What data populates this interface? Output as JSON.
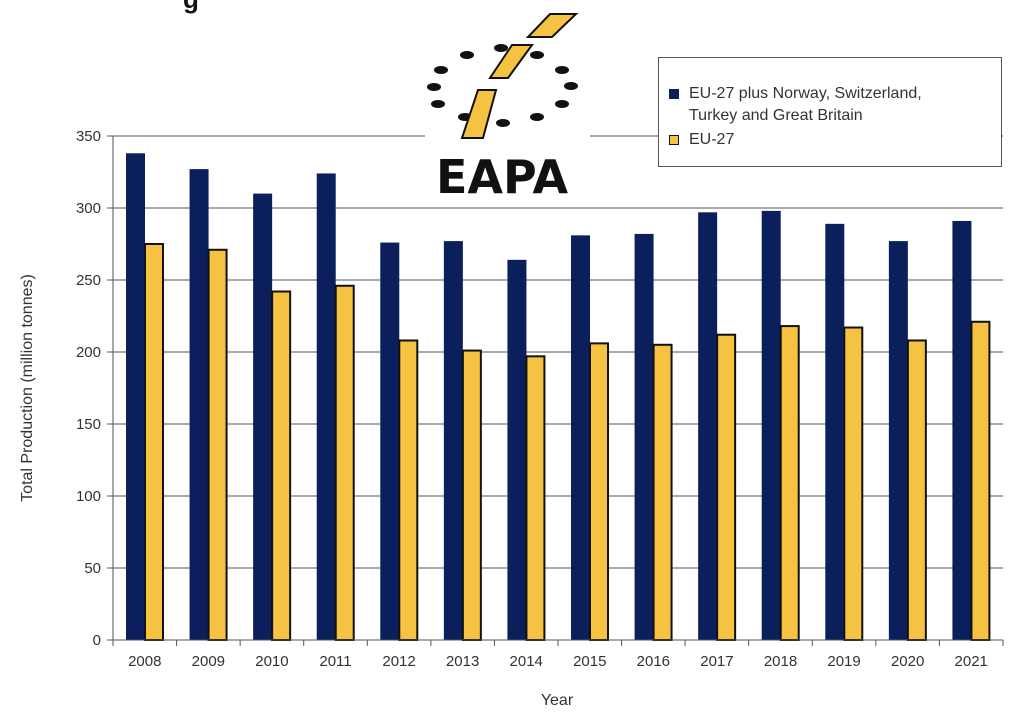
{
  "header": {
    "title_fragment": "g"
  },
  "logo": {
    "text": "EAPA"
  },
  "chart_data": {
    "type": "bar",
    "title": "",
    "xlabel": "Year",
    "ylabel": "Total Production (million tonnes)",
    "ylim": [
      0,
      350
    ],
    "yticks": [
      0,
      50,
      100,
      150,
      200,
      250,
      300,
      350
    ],
    "grid": true,
    "legend_position": "top-right",
    "categories": [
      "2008",
      "2009",
      "2010",
      "2011",
      "2012",
      "2013",
      "2014",
      "2015",
      "2016",
      "2017",
      "2018",
      "2019",
      "2020",
      "2021"
    ],
    "series": [
      {
        "name": "EU-27 plus Norway, Switzerland, Turkey and Great Britain",
        "legend_lines": [
          "EU-27 plus Norway, Switzerland,",
          "Turkey and Great Britain"
        ],
        "color": "#0b1f5c",
        "values": [
          338,
          327,
          310,
          324,
          276,
          277,
          264,
          281,
          282,
          297,
          298,
          289,
          277,
          291
        ]
      },
      {
        "name": "EU-27",
        "legend_lines": [
          "EU-27"
        ],
        "color": "#f5c242",
        "values": [
          275,
          271,
          242,
          246,
          208,
          201,
          197,
          206,
          205,
          212,
          218,
          217,
          208,
          221
        ]
      }
    ]
  }
}
